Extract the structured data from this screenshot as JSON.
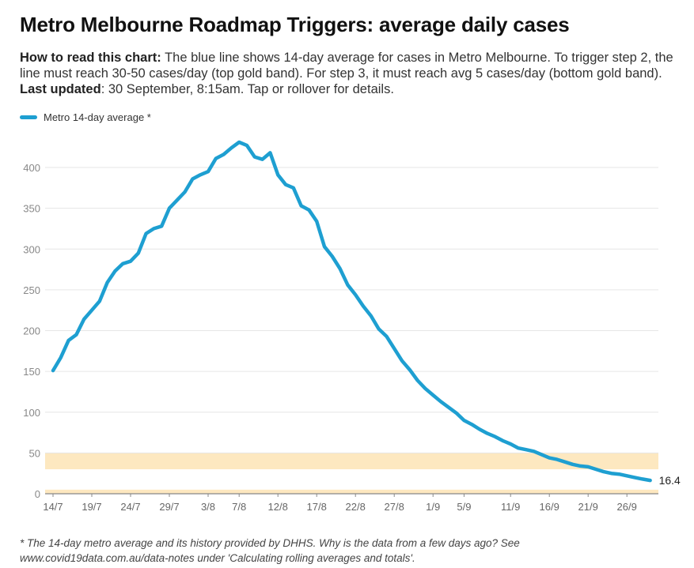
{
  "header": {
    "title": "Metro Melbourne Roadmap Triggers: average daily cases",
    "desc_lead": "How to read this chart:",
    "desc_body": " The blue line shows 14-day average for cases in Metro Melbourne. To trigger step 2, the line must reach 30-50 cases/day (top gold band). For step 3, it must reach avg 5 cases/day (bottom gold band). ",
    "updated_label": "Last updated",
    "updated_body": ": 30 September, 8:15am. Tap or rollover for details."
  },
  "legend": {
    "label": "Metro 14-day average *"
  },
  "footnote": "* The 14-day metro average and its history provided by DHHS. Why is the data from a few days ago? See www.covid19data.com.au/data-notes under 'Calculating rolling averages and totals'.",
  "colors": {
    "line": "#1e9fd1",
    "band": "#fde8c0",
    "grid": "#e6e6e6",
    "axis": "#888888"
  },
  "chart_data": {
    "type": "line",
    "title": "Metro Melbourne Roadmap Triggers: average daily cases",
    "series": [
      {
        "name": "Metro 14-day average *",
        "x_start_day_index": 0,
        "values": [
          151,
          167,
          188,
          195,
          214,
          225,
          236,
          259,
          273,
          282,
          285,
          295,
          319,
          325,
          328,
          350,
          360,
          370,
          386,
          391,
          395,
          411,
          416,
          424,
          431,
          427,
          413,
          410,
          418,
          391,
          379,
          375,
          353,
          348,
          334,
          303,
          291,
          276,
          256,
          244,
          230,
          218,
          202,
          193,
          178,
          163,
          152,
          139,
          129,
          121,
          113,
          106,
          99,
          90,
          85,
          79,
          74,
          70,
          65,
          61,
          56,
          54,
          52,
          48,
          44,
          42,
          39,
          36,
          34,
          33,
          30,
          27,
          25,
          24,
          22,
          20,
          18,
          16.4
        ]
      }
    ],
    "x_tick_labels": [
      "14/7",
      "19/7",
      "24/7",
      "29/7",
      "3/8",
      "7/8",
      "12/8",
      "17/8",
      "22/8",
      "27/8",
      "1/9",
      "5/9",
      "11/9",
      "16/9",
      "21/9",
      "26/9"
    ],
    "x_tick_day_index": [
      0,
      5,
      10,
      15,
      20,
      24,
      29,
      34,
      39,
      44,
      49,
      53,
      59,
      64,
      69,
      74
    ],
    "y_ticks": [
      0,
      50,
      100,
      150,
      200,
      250,
      300,
      350,
      400
    ],
    "ylim": [
      0,
      430
    ],
    "end_label": "16.4",
    "bands": [
      {
        "name": "step 2 target",
        "from": 30,
        "to": 50
      },
      {
        "name": "step 3 target",
        "from": 0,
        "to": 5
      }
    ],
    "xlabel": "",
    "ylabel": ""
  }
}
